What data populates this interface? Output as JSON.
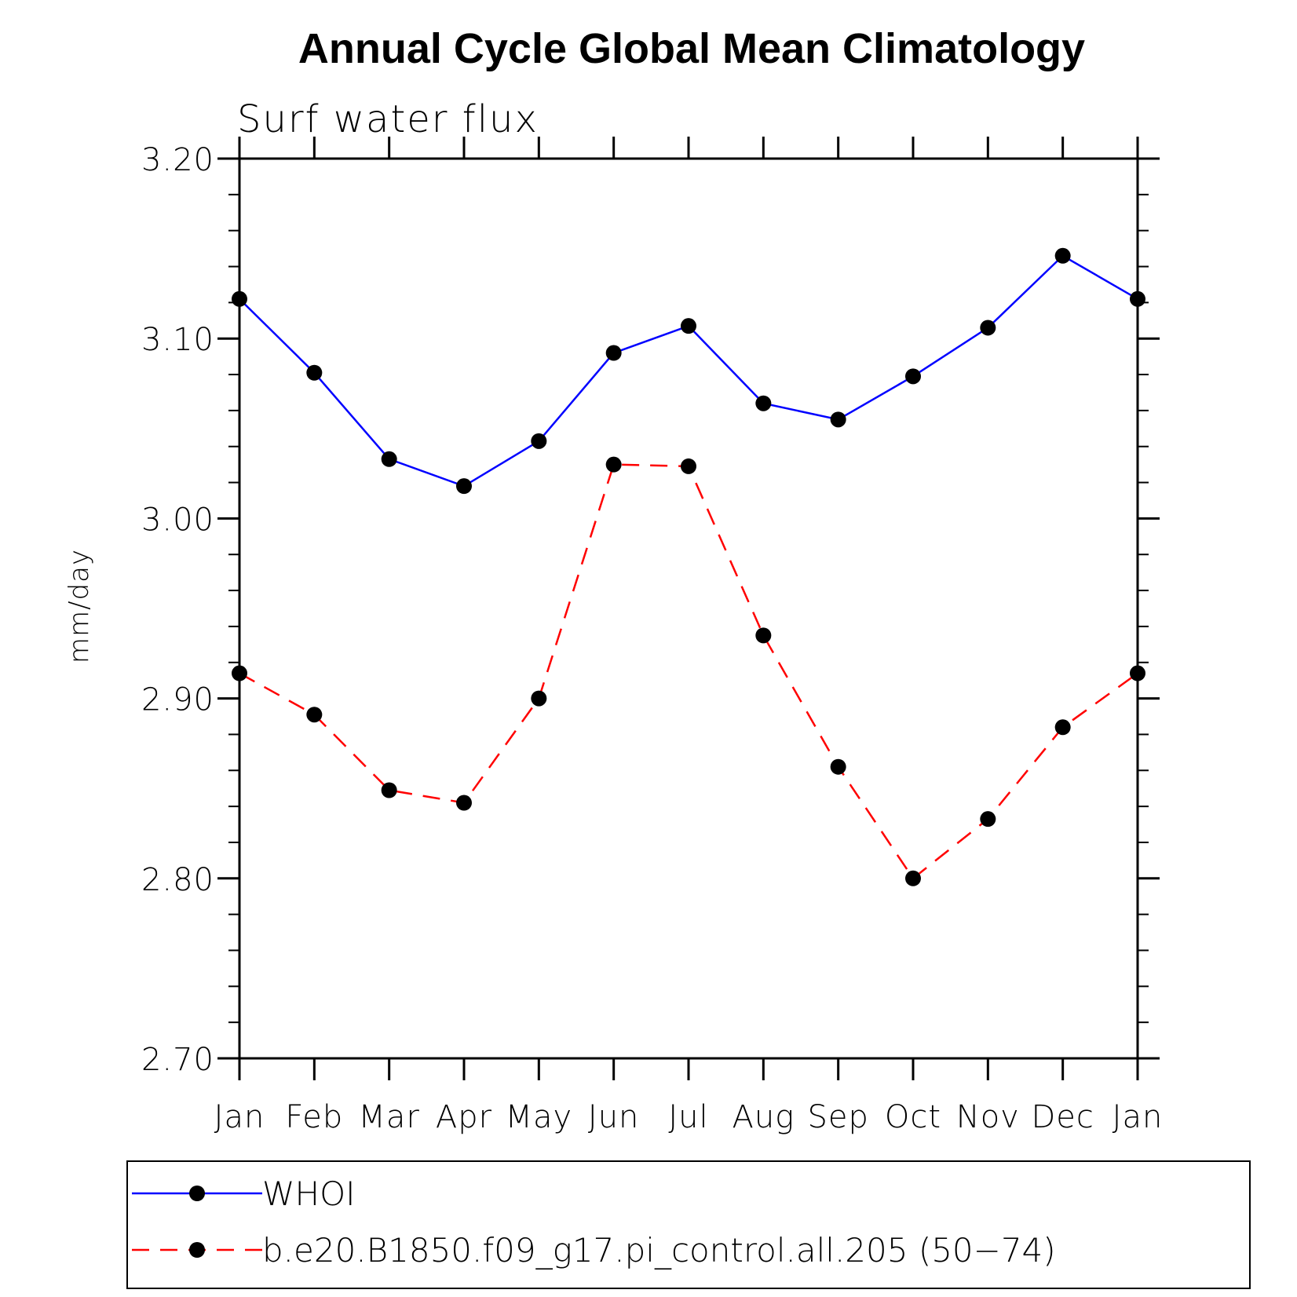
{
  "chart_data": {
    "type": "line",
    "title": "Annual Cycle Global Mean Climatology",
    "subtitle": "Surf water flux",
    "xlabel": "",
    "ylabel": "mm/day",
    "ylim": [
      2.7,
      3.2
    ],
    "yticks": [
      "2.70",
      "2.80",
      "2.90",
      "3.00",
      "3.10",
      "3.20"
    ],
    "categories": [
      "Jan",
      "Feb",
      "Mar",
      "Apr",
      "May",
      "Jun",
      "Jul",
      "Aug",
      "Sep",
      "Oct",
      "Nov",
      "Dec",
      "Jan"
    ],
    "grid": false,
    "legend_position": "bottom",
    "series": [
      {
        "name": "WHOI",
        "color": "#0000ff",
        "line_style": "solid",
        "marker": "filled-circle",
        "values": [
          3.122,
          3.081,
          3.033,
          3.018,
          3.043,
          3.092,
          3.107,
          3.064,
          3.055,
          3.079,
          3.106,
          3.146,
          3.122
        ]
      },
      {
        "name": "b.e20.B1850.f09_g17.pi_control.all.205 (50−74)",
        "color": "#ff0000",
        "line_style": "dashed",
        "marker": "filled-circle",
        "values": [
          2.914,
          2.891,
          2.849,
          2.842,
          2.9,
          3.03,
          3.029,
          2.935,
          2.862,
          2.8,
          2.833,
          2.884,
          2.914
        ]
      }
    ]
  }
}
